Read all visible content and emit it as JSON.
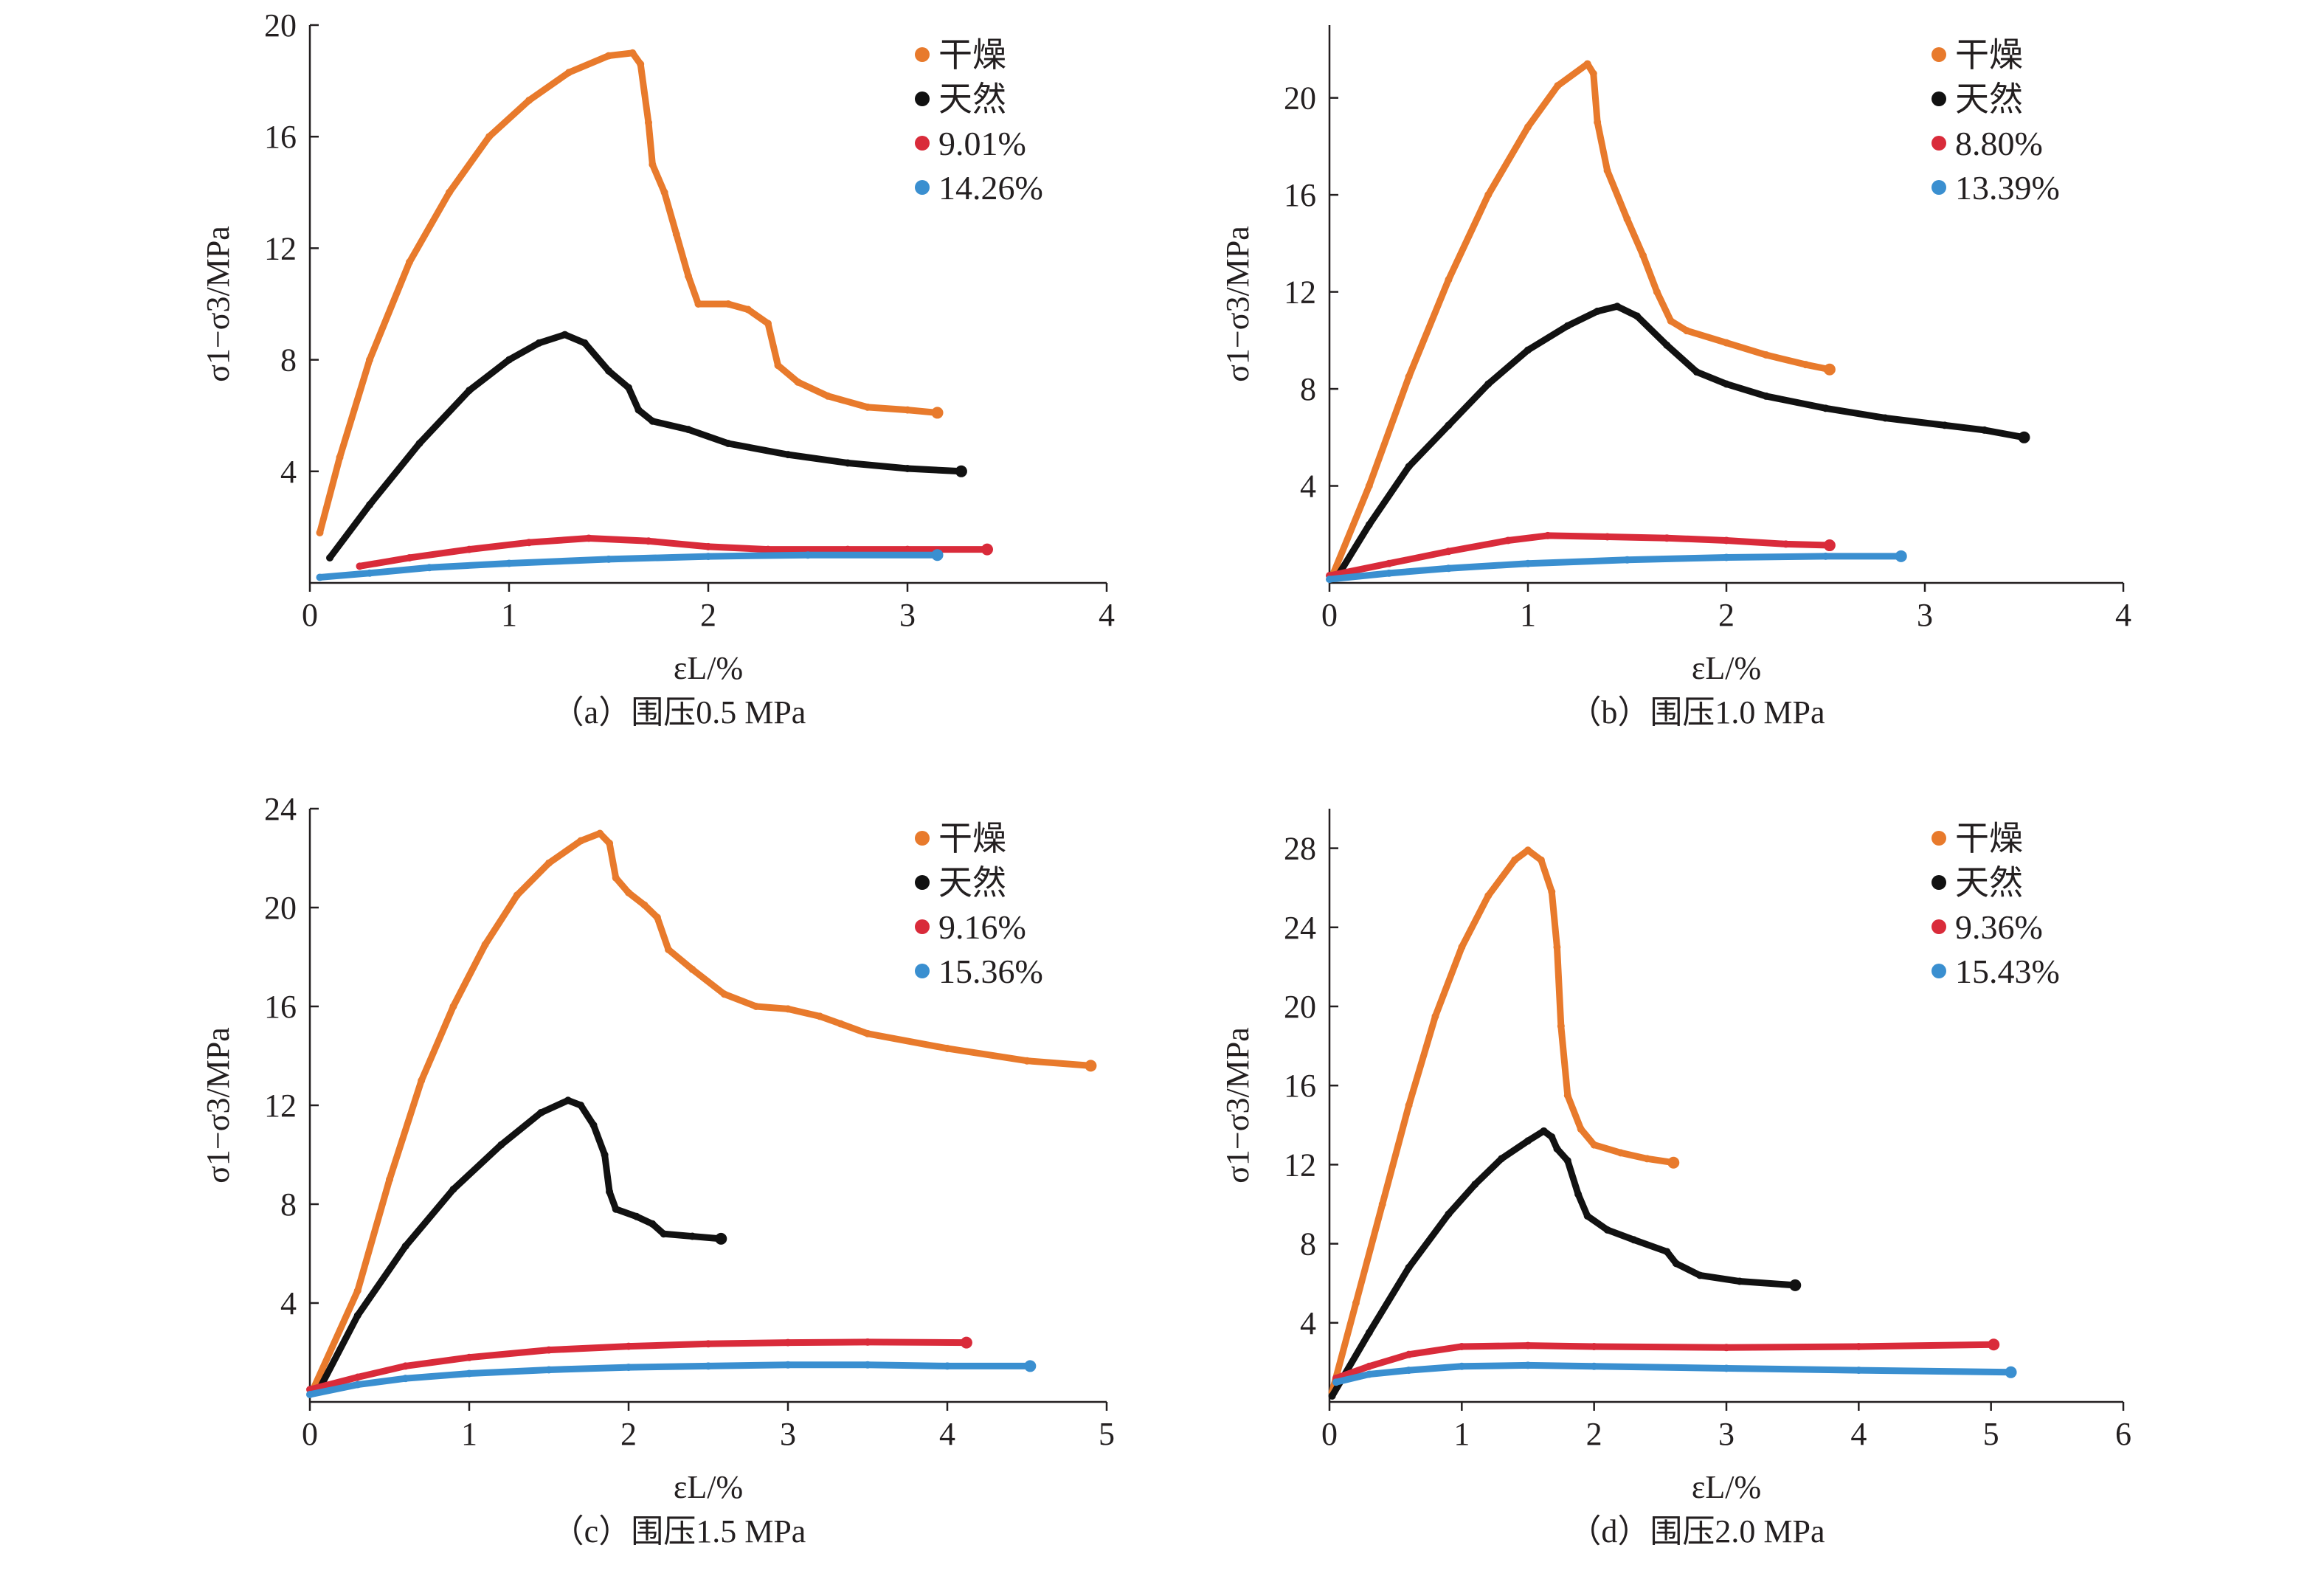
{
  "figure": {
    "y_axis_label": "σ1−σ3/MPa",
    "x_axis_label": "εL/%"
  },
  "series_colors": {
    "干燥": "#e87a2c",
    "天然": "#111111",
    "wet1": "#d92b3a",
    "wet2": "#3a8fd0"
  },
  "chart_data": [
    {
      "type": "scatter",
      "panel": "a",
      "title": "（a）围压0.5 MPa",
      "xlabel": "εL/%",
      "ylabel": "σ1−σ3/MPa",
      "xlim": [
        0,
        4
      ],
      "ylim": [
        0,
        20
      ],
      "xticks": [
        0,
        1,
        2,
        3,
        4
      ],
      "yticks": [
        4,
        8,
        12,
        16,
        20
      ],
      "legend_position": "top-right",
      "series": [
        {
          "name": "干燥",
          "color": "#e87a2c",
          "points": [
            [
              0.05,
              1.8
            ],
            [
              0.15,
              4.5
            ],
            [
              0.3,
              8
            ],
            [
              0.5,
              11.5
            ],
            [
              0.7,
              14
            ],
            [
              0.9,
              16
            ],
            [
              1.1,
              17.3
            ],
            [
              1.3,
              18.3
            ],
            [
              1.5,
              18.9
            ],
            [
              1.62,
              19.0
            ],
            [
              1.66,
              18.6
            ],
            [
              1.7,
              16.5
            ],
            [
              1.72,
              15
            ],
            [
              1.78,
              14
            ],
            [
              1.84,
              12.5
            ],
            [
              1.9,
              11
            ],
            [
              1.95,
              10
            ],
            [
              2.1,
              10
            ],
            [
              2.2,
              9.8
            ],
            [
              2.3,
              9.3
            ],
            [
              2.35,
              7.8
            ],
            [
              2.45,
              7.2
            ],
            [
              2.6,
              6.7
            ],
            [
              2.8,
              6.3
            ],
            [
              3.0,
              6.2
            ],
            [
              3.15,
              6.1
            ]
          ]
        },
        {
          "name": "天然",
          "color": "#111111",
          "points": [
            [
              0.1,
              0.9
            ],
            [
              0.3,
              2.8
            ],
            [
              0.55,
              5
            ],
            [
              0.8,
              6.9
            ],
            [
              1.0,
              8.0
            ],
            [
              1.15,
              8.6
            ],
            [
              1.28,
              8.9
            ],
            [
              1.38,
              8.6
            ],
            [
              1.5,
              7.6
            ],
            [
              1.6,
              7.0
            ],
            [
              1.65,
              6.2
            ],
            [
              1.72,
              5.8
            ],
            [
              1.9,
              5.5
            ],
            [
              2.1,
              5.0
            ],
            [
              2.4,
              4.6
            ],
            [
              2.7,
              4.3
            ],
            [
              3.0,
              4.1
            ],
            [
              3.27,
              4.0
            ]
          ]
        },
        {
          "name": "9.01%",
          "color": "#d92b3a",
          "points": [
            [
              0.25,
              0.6
            ],
            [
              0.5,
              0.9
            ],
            [
              0.8,
              1.2
            ],
            [
              1.1,
              1.45
            ],
            [
              1.4,
              1.6
            ],
            [
              1.7,
              1.5
            ],
            [
              2.0,
              1.3
            ],
            [
              2.3,
              1.2
            ],
            [
              2.7,
              1.2
            ],
            [
              3.0,
              1.2
            ],
            [
              3.4,
              1.2
            ]
          ]
        },
        {
          "name": "14.26%",
          "color": "#3a8fd0",
          "points": [
            [
              0.05,
              0.2
            ],
            [
              0.3,
              0.35
            ],
            [
              0.6,
              0.55
            ],
            [
              1.0,
              0.7
            ],
            [
              1.5,
              0.85
            ],
            [
              2.0,
              0.95
            ],
            [
              2.5,
              1.0
            ],
            [
              3.15,
              1.0
            ]
          ]
        }
      ]
    },
    {
      "type": "scatter",
      "panel": "b",
      "title": "（b）围压1.0 MPa",
      "xlabel": "εL/%",
      "ylabel": "σ1−σ3/MPa",
      "xlim": [
        0,
        4
      ],
      "ylim": [
        0,
        23
      ],
      "xticks": [
        0,
        1,
        2,
        3,
        4
      ],
      "yticks": [
        4,
        8,
        12,
        16,
        20
      ],
      "legend_position": "top-right",
      "series": [
        {
          "name": "干燥",
          "color": "#e87a2c",
          "points": [
            [
              0.02,
              0.4
            ],
            [
              0.2,
              4
            ],
            [
              0.4,
              8.5
            ],
            [
              0.6,
              12.5
            ],
            [
              0.8,
              16
            ],
            [
              1.0,
              18.8
            ],
            [
              1.15,
              20.5
            ],
            [
              1.3,
              21.4
            ],
            [
              1.33,
              21.0
            ],
            [
              1.35,
              19
            ],
            [
              1.4,
              17
            ],
            [
              1.5,
              15
            ],
            [
              1.58,
              13.5
            ],
            [
              1.65,
              12
            ],
            [
              1.72,
              10.8
            ],
            [
              1.8,
              10.4
            ],
            [
              2.0,
              9.9
            ],
            [
              2.2,
              9.4
            ],
            [
              2.4,
              9.0
            ],
            [
              2.52,
              8.8
            ]
          ]
        },
        {
          "name": "天然",
          "color": "#111111",
          "points": [
            [
              0.05,
              0.4
            ],
            [
              0.2,
              2.4
            ],
            [
              0.4,
              4.8
            ],
            [
              0.6,
              6.5
            ],
            [
              0.8,
              8.2
            ],
            [
              1.0,
              9.6
            ],
            [
              1.2,
              10.6
            ],
            [
              1.35,
              11.2
            ],
            [
              1.45,
              11.4
            ],
            [
              1.55,
              11.0
            ],
            [
              1.7,
              9.8
            ],
            [
              1.85,
              8.7
            ],
            [
              2.0,
              8.2
            ],
            [
              2.2,
              7.7
            ],
            [
              2.5,
              7.2
            ],
            [
              2.8,
              6.8
            ],
            [
              3.1,
              6.5
            ],
            [
              3.3,
              6.3
            ],
            [
              3.5,
              6.0
            ]
          ]
        },
        {
          "name": "8.80%",
          "color": "#d92b3a",
          "points": [
            [
              0.0,
              0.3
            ],
            [
              0.3,
              0.8
            ],
            [
              0.6,
              1.3
            ],
            [
              0.9,
              1.75
            ],
            [
              1.1,
              1.95
            ],
            [
              1.4,
              1.9
            ],
            [
              1.7,
              1.85
            ],
            [
              2.0,
              1.75
            ],
            [
              2.3,
              1.6
            ],
            [
              2.52,
              1.55
            ]
          ]
        },
        {
          "name": "13.39%",
          "color": "#3a8fd0",
          "points": [
            [
              0.0,
              0.15
            ],
            [
              0.3,
              0.4
            ],
            [
              0.6,
              0.6
            ],
            [
              1.0,
              0.8
            ],
            [
              1.5,
              0.95
            ],
            [
              2.0,
              1.05
            ],
            [
              2.5,
              1.1
            ],
            [
              2.88,
              1.1
            ]
          ]
        }
      ]
    },
    {
      "type": "scatter",
      "panel": "c",
      "title": "（c）围压1.5 MPa",
      "xlabel": "εL/%",
      "ylabel": "σ1−σ3/MPa",
      "xlim": [
        0,
        5
      ],
      "ylim": [
        0,
        24
      ],
      "xticks": [
        0,
        1,
        2,
        3,
        4,
        5
      ],
      "yticks": [
        4,
        8,
        12,
        16,
        20,
        24
      ],
      "legend_position": "top-right",
      "series": [
        {
          "name": "干燥",
          "color": "#e87a2c",
          "points": [
            [
              0.02,
              0.5
            ],
            [
              0.3,
              4.5
            ],
            [
              0.5,
              9
            ],
            [
              0.7,
              13
            ],
            [
              0.9,
              16
            ],
            [
              1.1,
              18.5
            ],
            [
              1.3,
              20.5
            ],
            [
              1.5,
              21.8
            ],
            [
              1.7,
              22.7
            ],
            [
              1.82,
              23.0
            ],
            [
              1.88,
              22.6
            ],
            [
              1.92,
              21.2
            ],
            [
              2.0,
              20.6
            ],
            [
              2.1,
              20.1
            ],
            [
              2.18,
              19.6
            ],
            [
              2.25,
              18.3
            ],
            [
              2.4,
              17.5
            ],
            [
              2.6,
              16.5
            ],
            [
              2.8,
              16.0
            ],
            [
              3.0,
              15.9
            ],
            [
              3.2,
              15.6
            ],
            [
              3.33,
              15.3
            ],
            [
              3.5,
              14.9
            ],
            [
              4.0,
              14.3
            ],
            [
              4.5,
              13.8
            ],
            [
              4.9,
              13.6
            ]
          ]
        },
        {
          "name": "天然",
          "color": "#111111",
          "points": [
            [
              0.05,
              0.4
            ],
            [
              0.3,
              3.5
            ],
            [
              0.6,
              6.3
            ],
            [
              0.9,
              8.6
            ],
            [
              1.2,
              10.4
            ],
            [
              1.45,
              11.7
            ],
            [
              1.62,
              12.2
            ],
            [
              1.7,
              12.0
            ],
            [
              1.78,
              11.2
            ],
            [
              1.85,
              10.0
            ],
            [
              1.88,
              8.5
            ],
            [
              1.92,
              7.8
            ],
            [
              2.05,
              7.5
            ],
            [
              2.15,
              7.2
            ],
            [
              2.22,
              6.8
            ],
            [
              2.4,
              6.7
            ],
            [
              2.58,
              6.6
            ]
          ]
        },
        {
          "name": "9.16%",
          "color": "#d92b3a",
          "points": [
            [
              0.0,
              0.5
            ],
            [
              0.3,
              1.0
            ],
            [
              0.6,
              1.45
            ],
            [
              1.0,
              1.8
            ],
            [
              1.5,
              2.1
            ],
            [
              2.0,
              2.25
            ],
            [
              2.5,
              2.35
            ],
            [
              3.0,
              2.4
            ],
            [
              3.5,
              2.42
            ],
            [
              4.12,
              2.4
            ]
          ]
        },
        {
          "name": "15.36%",
          "color": "#3a8fd0",
          "points": [
            [
              0.0,
              0.3
            ],
            [
              0.3,
              0.7
            ],
            [
              0.6,
              0.95
            ],
            [
              1.0,
              1.15
            ],
            [
              1.5,
              1.3
            ],
            [
              2.0,
              1.4
            ],
            [
              2.5,
              1.45
            ],
            [
              3.0,
              1.5
            ],
            [
              3.5,
              1.5
            ],
            [
              4.0,
              1.45
            ],
            [
              4.52,
              1.45
            ]
          ]
        }
      ]
    },
    {
      "type": "scatter",
      "panel": "d",
      "title": "（d）围压2.0 MPa",
      "xlabel": "εL/%",
      "ylabel": "σ1−σ3/MPa",
      "xlim": [
        0,
        6
      ],
      "ylim": [
        0,
        30
      ],
      "xticks": [
        0,
        1,
        2,
        3,
        4,
        5,
        6
      ],
      "yticks": [
        4,
        8,
        12,
        16,
        20,
        24,
        28
      ],
      "legend_position": "top-right",
      "series": [
        {
          "name": "干燥",
          "color": "#e87a2c",
          "points": [
            [
              0.02,
              0.5
            ],
            [
              0.2,
              5
            ],
            [
              0.4,
              10
            ],
            [
              0.6,
              15
            ],
            [
              0.8,
              19.5
            ],
            [
              1.0,
              23
            ],
            [
              1.2,
              25.6
            ],
            [
              1.4,
              27.4
            ],
            [
              1.5,
              27.9
            ],
            [
              1.6,
              27.4
            ],
            [
              1.68,
              25.8
            ],
            [
              1.72,
              23
            ],
            [
              1.75,
              19
            ],
            [
              1.8,
              15.5
            ],
            [
              1.9,
              13.8
            ],
            [
              2.0,
              13.0
            ],
            [
              2.2,
              12.6
            ],
            [
              2.4,
              12.3
            ],
            [
              2.6,
              12.1
            ]
          ]
        },
        {
          "name": "天然",
          "color": "#111111",
          "points": [
            [
              0.02,
              0.3
            ],
            [
              0.3,
              3.5
            ],
            [
              0.6,
              6.8
            ],
            [
              0.9,
              9.5
            ],
            [
              1.1,
              11.0
            ],
            [
              1.3,
              12.3
            ],
            [
              1.5,
              13.2
            ],
            [
              1.62,
              13.7
            ],
            [
              1.68,
              13.4
            ],
            [
              1.72,
              12.8
            ],
            [
              1.8,
              12.2
            ],
            [
              1.88,
              10.5
            ],
            [
              1.95,
              9.4
            ],
            [
              2.1,
              8.7
            ],
            [
              2.3,
              8.2
            ],
            [
              2.55,
              7.6
            ],
            [
              2.62,
              7.0
            ],
            [
              2.8,
              6.4
            ],
            [
              3.1,
              6.1
            ],
            [
              3.52,
              5.9
            ]
          ]
        },
        {
          "name": "9.36%",
          "color": "#d92b3a",
          "points": [
            [
              0.05,
              1.2
            ],
            [
              0.3,
              1.8
            ],
            [
              0.6,
              2.4
            ],
            [
              1.0,
              2.8
            ],
            [
              1.5,
              2.85
            ],
            [
              2.0,
              2.8
            ],
            [
              3.0,
              2.75
            ],
            [
              4.0,
              2.8
            ],
            [
              5.02,
              2.9
            ]
          ]
        },
        {
          "name": "15.43%",
          "color": "#3a8fd0",
          "points": [
            [
              0.05,
              1.0
            ],
            [
              0.3,
              1.4
            ],
            [
              0.6,
              1.6
            ],
            [
              1.0,
              1.8
            ],
            [
              1.5,
              1.85
            ],
            [
              2.0,
              1.8
            ],
            [
              3.0,
              1.7
            ],
            [
              4.0,
              1.6
            ],
            [
              5.15,
              1.5
            ]
          ]
        }
      ]
    }
  ]
}
